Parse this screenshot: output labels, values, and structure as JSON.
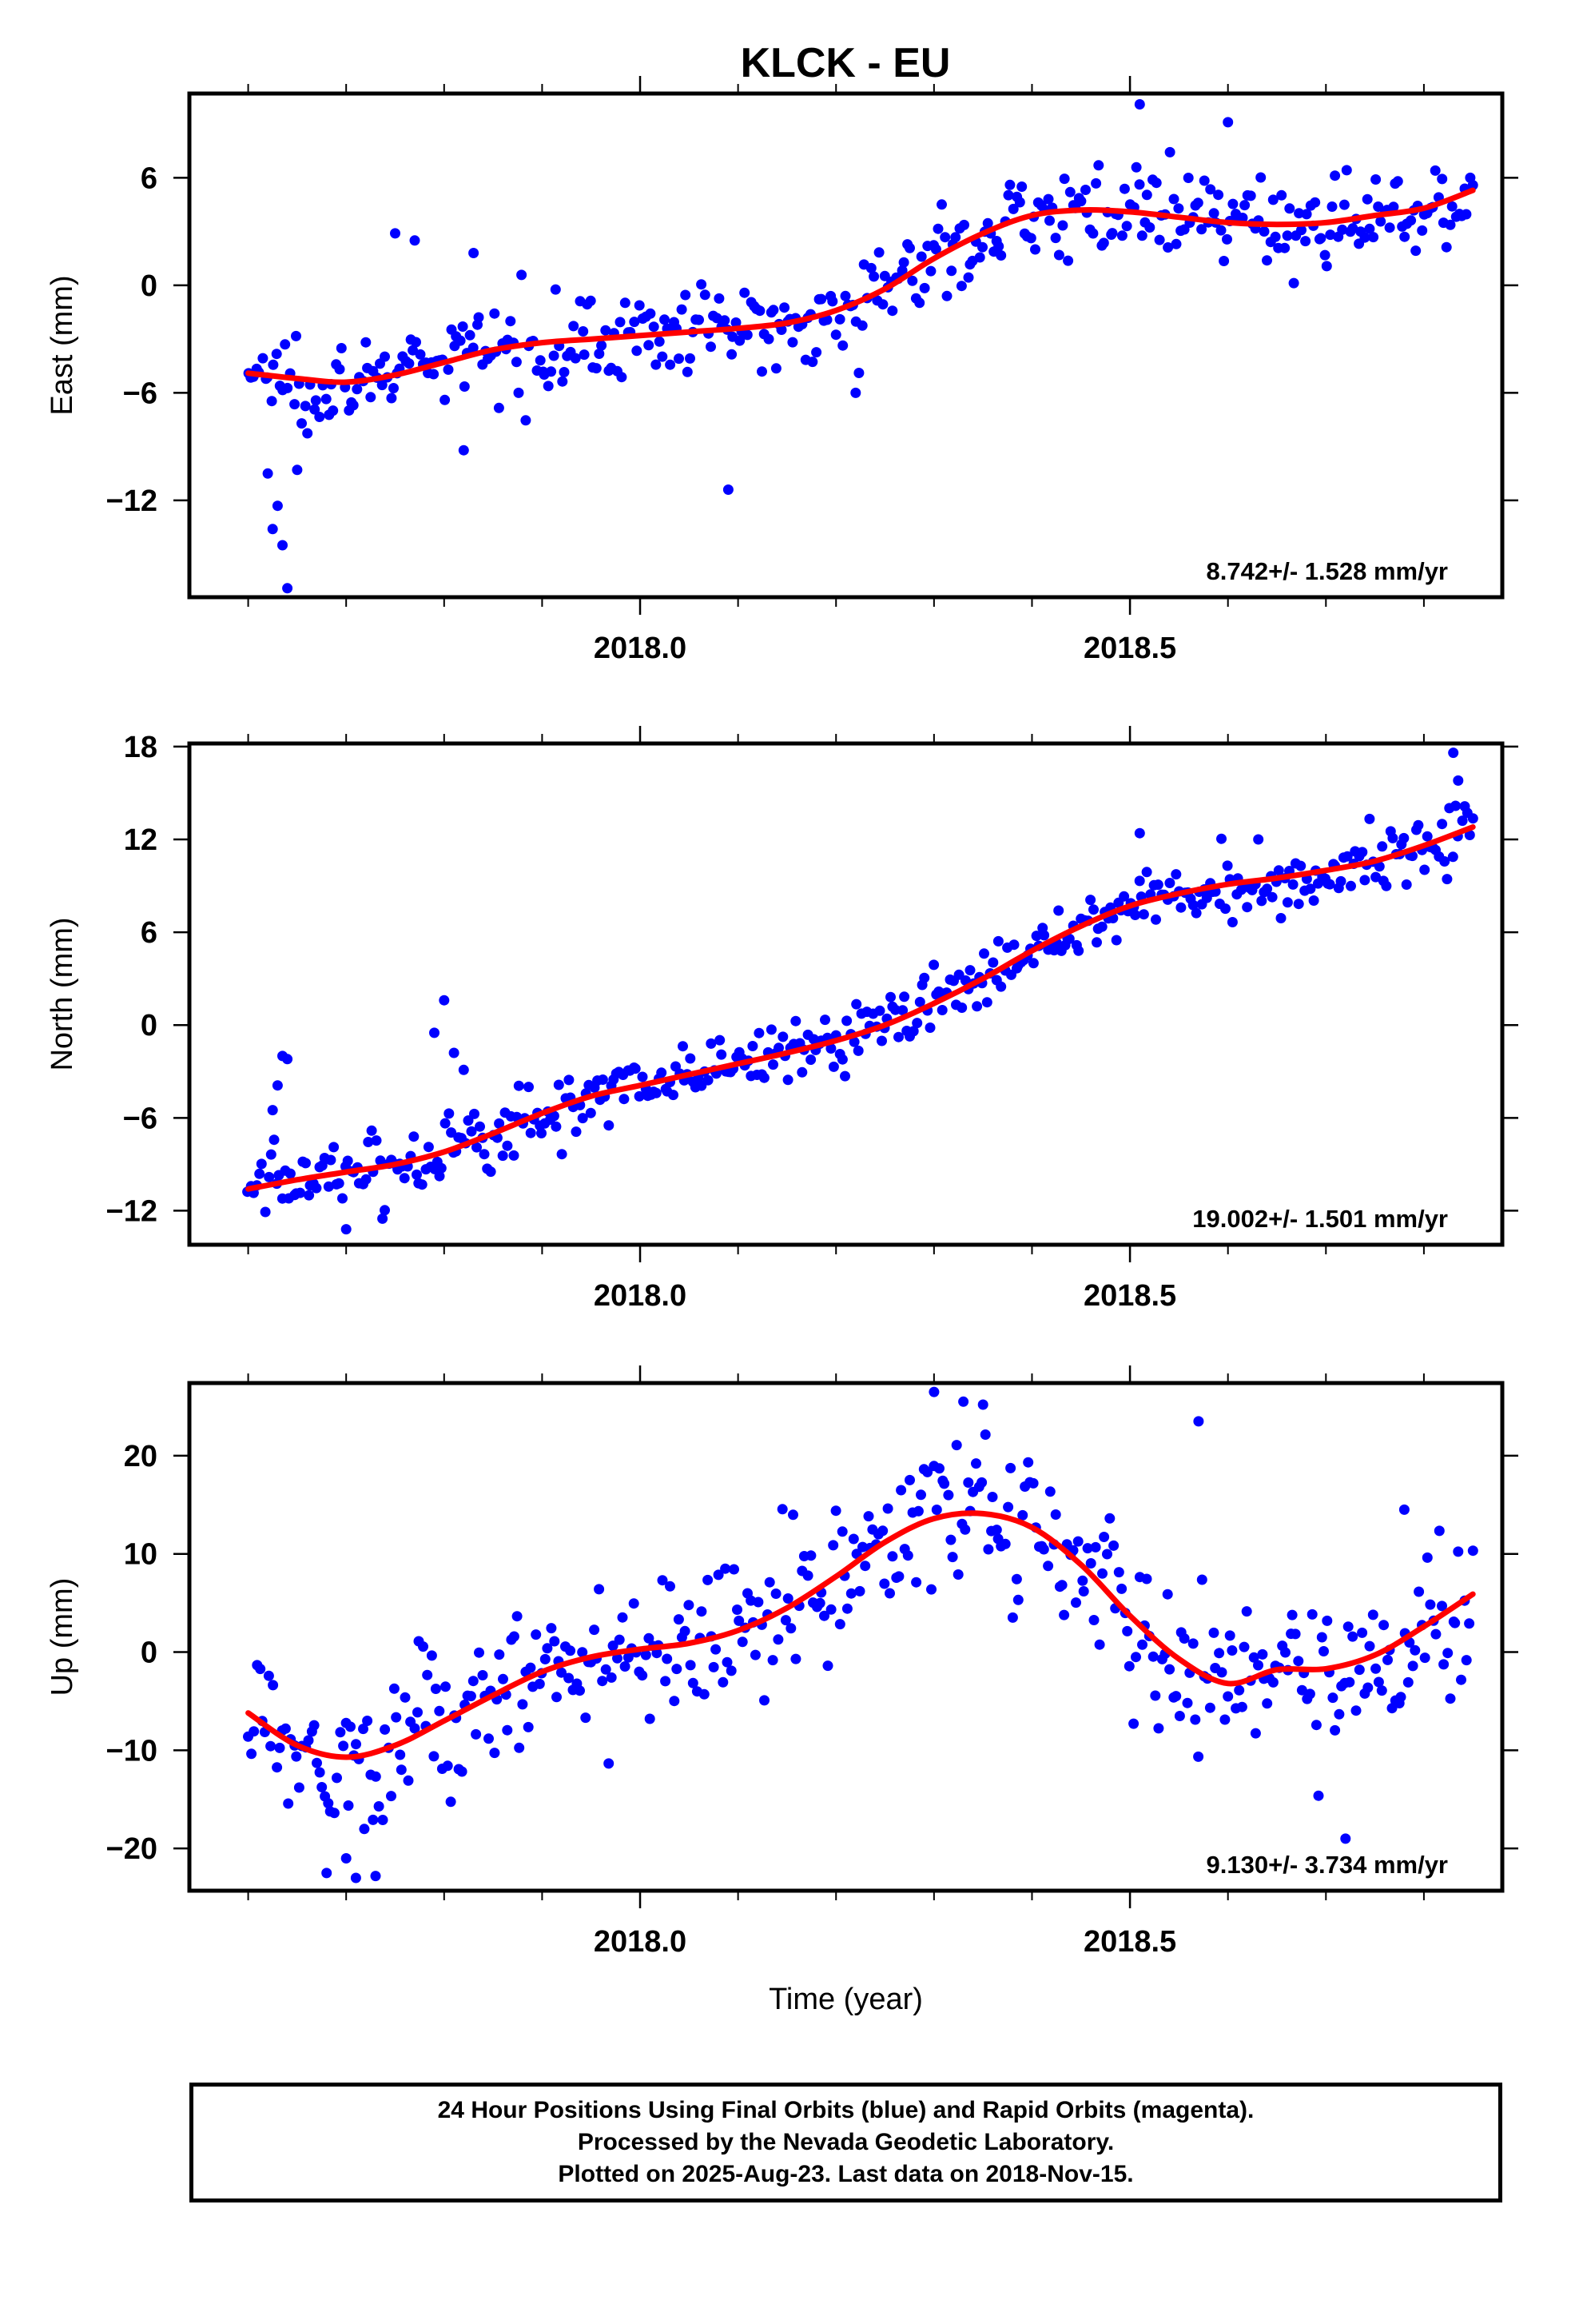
{
  "figure_title": "KLCK - EU",
  "footer": {
    "lines": [
      "24 Hour Positions Using Final Orbits (blue) and Rapid Orbits (magenta).",
      "Processed by the Nevada Geodetic Laboratory.",
      "Plotted on 2025-Aug-23. Last data on 2018-Nov-15."
    ]
  },
  "colors": {
    "points": "#0000ff",
    "fit": "#ff0000",
    "frame": "#000000",
    "background": "#ffffff"
  },
  "chart_data": [
    {
      "type": "scatter",
      "title": "",
      "ylabel": "East (mm)",
      "xlabel": "",
      "rate": "8.742+/- 1.528 mm/yr",
      "xlim": [
        2017.54,
        2018.88
      ],
      "ylim": [
        -17.4,
        10.7
      ],
      "yticks": [
        6,
        0,
        -6,
        -12
      ],
      "xticks": [
        2018.0,
        2018.5
      ],
      "xtick_labels": [
        "2018.0",
        "2018.5"
      ],
      "grid": false,
      "x_start": 2017.6,
      "x_end": 2018.85,
      "fit_x": [
        2017.6,
        2017.65,
        2017.7,
        2017.75,
        2017.8,
        2017.85,
        2017.9,
        2017.95,
        2018.0,
        2018.05,
        2018.1,
        2018.15,
        2018.2,
        2018.25,
        2018.3,
        2018.35,
        2018.4,
        2018.45,
        2018.5,
        2018.55,
        2018.6,
        2018.65,
        2018.7,
        2018.75,
        2018.8,
        2018.85
      ],
      "fit_y": [
        -4.9,
        -5.2,
        -5.4,
        -5.0,
        -4.3,
        -3.6,
        -3.2,
        -3.0,
        -2.8,
        -2.6,
        -2.4,
        -2.1,
        -1.4,
        -0.2,
        1.5,
        2.9,
        3.9,
        4.2,
        4.1,
        3.8,
        3.5,
        3.4,
        3.5,
        3.9,
        4.3,
        5.3
      ],
      "spread": 1.6,
      "outliers": [
        {
          "x": 2017.62,
          "y": -10.5
        },
        {
          "x": 2017.625,
          "y": -13.6
        },
        {
          "x": 2017.63,
          "y": -12.3
        },
        {
          "x": 2017.635,
          "y": -14.5
        },
        {
          "x": 2017.64,
          "y": -16.9
        },
        {
          "x": 2017.65,
          "y": -10.3
        },
        {
          "x": 2017.75,
          "y": 2.9
        },
        {
          "x": 2017.77,
          "y": 2.5
        },
        {
          "x": 2017.82,
          "y": -9.2
        },
        {
          "x": 2017.83,
          "y": 1.8
        },
        {
          "x": 2018.09,
          "y": -11.4
        },
        {
          "x": 2018.22,
          "y": -6.0
        },
        {
          "x": 2018.51,
          "y": 10.1
        },
        {
          "x": 2018.6,
          "y": 9.1
        }
      ]
    },
    {
      "type": "scatter",
      "title": "",
      "ylabel": "North (mm)",
      "xlabel": "",
      "rate": "19.002+/- 1.501 mm/yr",
      "xlim": [
        2017.54,
        2018.88
      ],
      "ylim": [
        -14.2,
        18.2
      ],
      "yticks": [
        18,
        12,
        6,
        0,
        -6,
        -12
      ],
      "xticks": [
        2018.0,
        2018.5
      ],
      "xtick_labels": [
        "2018.0",
        "2018.5"
      ],
      "grid": false,
      "x_start": 2017.6,
      "x_end": 2018.85,
      "fit_x": [
        2017.6,
        2017.65,
        2017.7,
        2017.75,
        2017.8,
        2017.85,
        2017.9,
        2017.95,
        2018.0,
        2018.05,
        2018.1,
        2018.15,
        2018.2,
        2018.25,
        2018.3,
        2018.35,
        2018.4,
        2018.45,
        2018.5,
        2018.55,
        2018.6,
        2018.65,
        2018.7,
        2018.75,
        2018.8,
        2018.85
      ],
      "fit_y": [
        -10.6,
        -10.0,
        -9.5,
        -9.0,
        -8.2,
        -7.0,
        -5.7,
        -4.6,
        -3.9,
        -3.2,
        -2.5,
        -1.8,
        -1.0,
        0.0,
        1.4,
        3.0,
        4.8,
        6.4,
        7.7,
        8.5,
        9.1,
        9.5,
        10.0,
        10.6,
        11.6,
        12.8
      ],
      "spread": 1.5,
      "outliers": [
        {
          "x": 2017.625,
          "y": -5.5
        },
        {
          "x": 2017.63,
          "y": -3.9
        },
        {
          "x": 2017.635,
          "y": -2.0
        },
        {
          "x": 2017.64,
          "y": -2.2
        },
        {
          "x": 2017.79,
          "y": -0.5
        },
        {
          "x": 2017.8,
          "y": 1.6
        },
        {
          "x": 2017.81,
          "y": -1.8
        },
        {
          "x": 2017.82,
          "y": -2.9
        },
        {
          "x": 2017.7,
          "y": -13.2
        },
        {
          "x": 2018.51,
          "y": 12.4
        },
        {
          "x": 2018.83,
          "y": 17.6
        },
        {
          "x": 2018.835,
          "y": 15.8
        }
      ]
    },
    {
      "type": "scatter",
      "title": "",
      "ylabel": "Up (mm)",
      "xlabel": "Time (year)",
      "rate": "9.130+/- 3.734 mm/yr",
      "xlim": [
        2017.54,
        2018.88
      ],
      "ylim": [
        -24.3,
        27.4
      ],
      "yticks": [
        20,
        10,
        0,
        -10,
        -20
      ],
      "xticks": [
        2018.0,
        2018.5
      ],
      "xtick_labels": [
        "2018.0",
        "2018.5"
      ],
      "grid": false,
      "x_start": 2017.6,
      "x_end": 2018.85,
      "fit_x": [
        2017.6,
        2017.65,
        2017.7,
        2017.75,
        2017.8,
        2017.85,
        2017.9,
        2017.95,
        2018.0,
        2018.05,
        2018.1,
        2018.15,
        2018.2,
        2018.25,
        2018.3,
        2018.35,
        2018.4,
        2018.45,
        2018.5,
        2018.55,
        2018.6,
        2018.65,
        2018.7,
        2018.75,
        2018.8,
        2018.85
      ],
      "fit_y": [
        -6.2,
        -9.5,
        -10.7,
        -9.5,
        -7.0,
        -4.4,
        -2.0,
        -0.5,
        0.3,
        0.9,
        2.2,
        4.5,
        7.7,
        11.2,
        13.6,
        14.1,
        12.7,
        8.9,
        3.7,
        -0.7,
        -3.2,
        -1.8,
        -1.7,
        -0.3,
        2.6,
        5.9
      ],
      "spread": 5.2,
      "outliers": [
        {
          "x": 2017.68,
          "y": -22.5
        },
        {
          "x": 2017.7,
          "y": -21.0
        },
        {
          "x": 2017.71,
          "y": -23.0
        },
        {
          "x": 2017.73,
          "y": -22.8
        },
        {
          "x": 2018.3,
          "y": 26.5
        },
        {
          "x": 2018.33,
          "y": 25.5
        },
        {
          "x": 2018.35,
          "y": 25.2
        },
        {
          "x": 2018.57,
          "y": 23.5
        },
        {
          "x": 2018.72,
          "y": -19.0
        },
        {
          "x": 2018.78,
          "y": 14.5
        }
      ]
    }
  ]
}
